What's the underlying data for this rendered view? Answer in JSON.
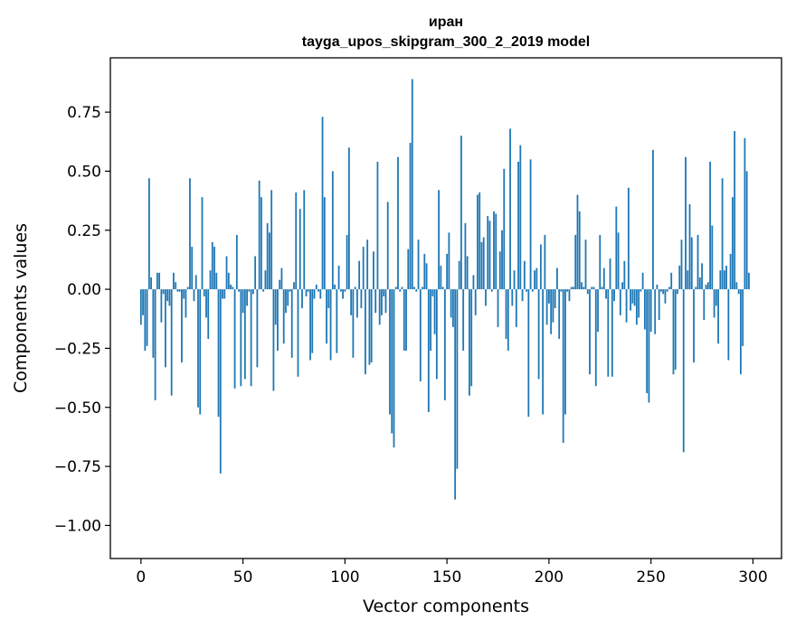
{
  "chart_data": {
    "type": "bar",
    "title": "иран",
    "subtitle": "tayga_upos_skipgram_300_2_2019 model",
    "xlabel": "Vector components",
    "ylabel": "Components values",
    "xlim": [
      -15,
      314
    ],
    "ylim": [
      -1.14,
      0.98
    ],
    "xticks": [
      0,
      50,
      100,
      150,
      200,
      250,
      300
    ],
    "xtick_labels": [
      "0",
      "50",
      "100",
      "150",
      "200",
      "250",
      "300"
    ],
    "yticks": [
      -1.0,
      -0.75,
      -0.5,
      -0.25,
      0.0,
      0.25,
      0.5,
      0.75
    ],
    "ytick_labels": [
      "−1.00",
      "−0.75",
      "−0.50",
      "−0.25",
      "0.00",
      "0.25",
      "0.50",
      "0.75"
    ],
    "bar_color": "#1f77b4",
    "grid": false,
    "values": [
      -0.15,
      -0.11,
      -0.26,
      -0.24,
      0.47,
      0.05,
      -0.29,
      -0.47,
      0.07,
      0.07,
      -0.14,
      -0.02,
      -0.33,
      -0.05,
      -0.07,
      -0.45,
      0.07,
      0.03,
      -0.01,
      -0.01,
      -0.31,
      -0.04,
      -0.12,
      0.01,
      0.47,
      0.18,
      -0.05,
      0.06,
      -0.5,
      -0.53,
      0.39,
      -0.03,
      -0.12,
      -0.21,
      0.08,
      0.2,
      0.18,
      0.07,
      -0.54,
      -0.78,
      -0.04,
      -0.04,
      0.14,
      0.07,
      0.02,
      0.01,
      -0.42,
      0.23,
      -0.01,
      -0.41,
      -0.1,
      -0.38,
      -0.07,
      -0.01,
      -0.41,
      -0.02,
      0.14,
      -0.33,
      0.46,
      0.39,
      -0.01,
      0.08,
      0.28,
      0.24,
      0.42,
      -0.43,
      -0.15,
      -0.26,
      0.04,
      0.09,
      -0.23,
      -0.1,
      -0.07,
      -0.01,
      -0.29,
      0.03,
      0.41,
      -0.37,
      0.34,
      -0.08,
      0.42,
      -0.03,
      -0.01,
      -0.3,
      -0.27,
      -0.04,
      0.02,
      -0.01,
      -0.04,
      0.73,
      0.39,
      -0.23,
      -0.08,
      -0.3,
      0.5,
      0.02,
      -0.27,
      0.1,
      -0.01,
      -0.04,
      -0.01,
      0.23,
      0.6,
      -0.11,
      -0.29,
      0.01,
      -0.12,
      0.12,
      -0.08,
      0.18,
      -0.36,
      0.21,
      -0.32,
      -0.31,
      0.16,
      -0.1,
      0.54,
      -0.15,
      -0.11,
      -0.03,
      -0.1,
      0.37,
      -0.53,
      -0.61,
      -0.67,
      0.01,
      0.56,
      -0.01,
      0.01,
      -0.26,
      -0.26,
      0.17,
      0.62,
      0.89,
      0.01,
      -0.01,
      0.21,
      -0.39,
      0.01,
      0.15,
      0.11,
      -0.52,
      -0.26,
      -0.03,
      -0.19,
      -0.38,
      0.42,
      0.1,
      0.01,
      -0.47,
      0.15,
      0.24,
      -0.12,
      -0.16,
      -0.89,
      -0.76,
      0.12,
      0.65,
      -0.26,
      0.28,
      0.14,
      -0.45,
      -0.41,
      0.06,
      -0.11,
      0.4,
      0.41,
      0.2,
      0.22,
      -0.07,
      0.31,
      0.29,
      -0.01,
      0.33,
      0.32,
      -0.16,
      0.16,
      0.25,
      0.51,
      -0.21,
      -0.26,
      0.68,
      -0.07,
      0.08,
      -0.16,
      0.54,
      0.61,
      -0.05,
      0.12,
      -0.01,
      -0.54,
      0.55,
      -0.01,
      0.08,
      0.09,
      -0.38,
      0.19,
      -0.53,
      0.23,
      -0.15,
      -0.06,
      -0.19,
      -0.14,
      -0.08,
      0.09,
      -0.21,
      -0.01,
      -0.65,
      -0.53,
      -0.01,
      -0.05,
      0.01,
      0.01,
      0.23,
      0.4,
      0.33,
      0.03,
      0.01,
      0.21,
      -0.02,
      -0.36,
      0.01,
      0.01,
      -0.41,
      -0.18,
      0.23,
      0.01,
      0.09,
      -0.04,
      -0.37,
      0.13,
      -0.37,
      -0.05,
      0.35,
      0.24,
      -0.11,
      0.03,
      0.12,
      -0.14,
      0.43,
      -0.09,
      -0.06,
      -0.07,
      -0.15,
      -0.12,
      -0.01,
      0.07,
      -0.17,
      -0.44,
      -0.48,
      -0.18,
      0.59,
      -0.19,
      0.02,
      -0.13,
      -0.01,
      -0.02,
      -0.06,
      -0.01,
      0.01,
      0.07,
      -0.36,
      -0.34,
      -0.02,
      0.1,
      0.21,
      -0.69,
      0.56,
      0.08,
      0.36,
      0.22,
      -0.31,
      0.01,
      0.23,
      0.05,
      0.11,
      -0.13,
      0.02,
      0.03,
      0.54,
      0.27,
      -0.12,
      -0.07,
      -0.23,
      0.08,
      0.47,
      0.08,
      0.1,
      -0.3,
      0.15,
      0.39,
      0.67,
      0.03,
      -0.02,
      -0.36,
      -0.24,
      0.64,
      0.5,
      0.07
    ]
  }
}
